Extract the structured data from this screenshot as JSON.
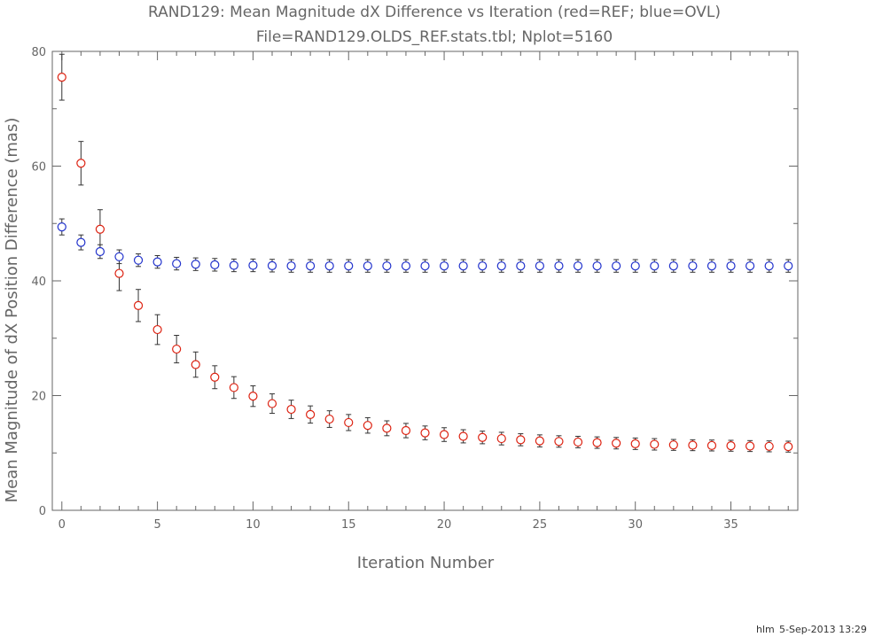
{
  "chart_data": {
    "type": "scatter",
    "title": "RAND129: Mean Magnitude dX Difference vs Iteration (red=REF; blue=OVL)",
    "subtitle": "File=RAND129.OLDS_REF.stats.tbl; Nplot=5160",
    "xlabel": "Iteration Number",
    "ylabel": "Mean Magnitude of dX Position Difference (mas)",
    "xlim": [
      -0.5,
      38.5
    ],
    "ylim": [
      0,
      80
    ],
    "x_ticks": [
      0,
      5,
      10,
      15,
      20,
      25,
      30,
      35
    ],
    "y_ticks": [
      0,
      20,
      40,
      60,
      80
    ],
    "grid": false,
    "series": [
      {
        "color": "#dd2211",
        "x": [
          0,
          1,
          2,
          3,
          4,
          5,
          6,
          7,
          8,
          9,
          10,
          11,
          12,
          13,
          14,
          15,
          16,
          17,
          18,
          19,
          20,
          21,
          22,
          23,
          24,
          25,
          26,
          27,
          28,
          29,
          30,
          31,
          32,
          33,
          34,
          35,
          36,
          37,
          38
        ],
        "y": [
          75.5,
          60.5,
          49.0,
          41.3,
          35.7,
          31.5,
          28.1,
          25.4,
          23.2,
          21.4,
          19.9,
          18.6,
          17.6,
          16.7,
          15.9,
          15.3,
          14.8,
          14.3,
          13.9,
          13.5,
          13.2,
          12.9,
          12.7,
          12.5,
          12.3,
          12.1,
          12.0,
          11.9,
          11.8,
          11.7,
          11.6,
          11.5,
          11.4,
          11.35,
          11.3,
          11.25,
          11.2,
          11.15,
          11.1
        ],
        "err": [
          4.0,
          3.8,
          3.4,
          3.0,
          2.8,
          2.6,
          2.4,
          2.2,
          2.0,
          1.9,
          1.8,
          1.7,
          1.6,
          1.5,
          1.45,
          1.4,
          1.35,
          1.3,
          1.25,
          1.2,
          1.2,
          1.15,
          1.1,
          1.1,
          1.05,
          1.05,
          1.0,
          1.0,
          1.0,
          1.0,
          1.0,
          1.0,
          0.95,
          0.95,
          0.95,
          0.95,
          0.95,
          0.95,
          0.95
        ]
      },
      {
        "color": "#2233cc",
        "x": [
          0,
          1,
          2,
          3,
          4,
          5,
          6,
          7,
          8,
          9,
          10,
          11,
          12,
          13,
          14,
          15,
          16,
          17,
          18,
          19,
          20,
          21,
          22,
          23,
          24,
          25,
          26,
          27,
          28,
          29,
          30,
          31,
          32,
          33,
          34,
          35,
          36,
          37,
          38
        ],
        "y": [
          49.4,
          46.7,
          45.1,
          44.2,
          43.6,
          43.3,
          43.0,
          42.9,
          42.8,
          42.7,
          42.7,
          42.65,
          42.6,
          42.6,
          42.6,
          42.6,
          42.6,
          42.6,
          42.6,
          42.6,
          42.6,
          42.6,
          42.6,
          42.6,
          42.6,
          42.6,
          42.6,
          42.6,
          42.6,
          42.6,
          42.6,
          42.6,
          42.6,
          42.6,
          42.6,
          42.6,
          42.6,
          42.6,
          42.6
        ],
        "err": [
          1.4,
          1.3,
          1.2,
          1.2,
          1.1,
          1.1,
          1.1,
          1.1,
          1.1,
          1.1,
          1.1,
          1.1,
          1.1,
          1.1,
          1.1,
          1.1,
          1.1,
          1.1,
          1.1,
          1.1,
          1.1,
          1.1,
          1.1,
          1.1,
          1.1,
          1.1,
          1.1,
          1.1,
          1.1,
          1.1,
          1.1,
          1.1,
          1.1,
          1.1,
          1.1,
          1.1,
          1.1,
          1.1,
          1.1
        ]
      }
    ],
    "axis_color": "#666666",
    "errorbar_color": "#333333"
  },
  "footer": {
    "user": "hlm",
    "date": "5-Sep-2013 13:29"
  }
}
